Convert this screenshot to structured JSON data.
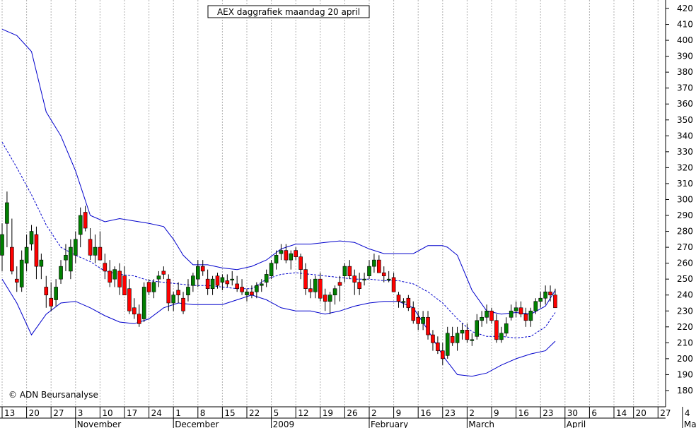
{
  "chart_data": {
    "type": "candlestick",
    "title": "AEX daggrafiek maandag 20 april",
    "credit": "© ADN Beursanalyse",
    "ylim": [
      165,
      425
    ],
    "y_ticks": [
      180,
      190,
      200,
      210,
      220,
      230,
      240,
      250,
      260,
      270,
      280,
      290,
      300,
      310,
      320,
      330,
      340,
      350,
      360,
      370,
      380,
      390,
      400,
      410,
      420
    ],
    "x_ticks": [
      {
        "label": "13",
        "day": 0
      },
      {
        "label": "20",
        "day": 5
      },
      {
        "label": "27",
        "day": 10
      },
      {
        "label": "3",
        "day": 15
      },
      {
        "label": "10",
        "day": 20
      },
      {
        "label": "17",
        "day": 25
      },
      {
        "label": "24",
        "day": 30
      },
      {
        "label": "1",
        "day": 35
      },
      {
        "label": "8",
        "day": 40
      },
      {
        "label": "15",
        "day": 45
      },
      {
        "label": "22",
        "day": 50
      },
      {
        "label": "5",
        "day": 55
      },
      {
        "label": "12",
        "day": 60
      },
      {
        "label": "19",
        "day": 65
      },
      {
        "label": "26",
        "day": 70
      },
      {
        "label": "2",
        "day": 75
      },
      {
        "label": "9",
        "day": 80
      },
      {
        "label": "16",
        "day": 85
      },
      {
        "label": "23",
        "day": 90
      },
      {
        "label": "2",
        "day": 95
      },
      {
        "label": "9",
        "day": 100
      },
      {
        "label": "16",
        "day": 105
      },
      {
        "label": "23",
        "day": 110
      },
      {
        "label": "30",
        "day": 115
      },
      {
        "label": "6",
        "day": 120
      },
      {
        "label": "14",
        "day": 125
      },
      {
        "label": "20",
        "day": 129
      },
      {
        "label": "27",
        "day": 134
      },
      {
        "label": "4",
        "day": 139
      }
    ],
    "months": [
      {
        "label": "November",
        "day": 15
      },
      {
        "label": "December",
        "day": 35
      },
      {
        "label": "2009",
        "day": 55
      },
      {
        "label": "February",
        "day": 75
      },
      {
        "label": "March",
        "day": 95
      },
      {
        "label": "April",
        "day": 115
      },
      {
        "label": "Ma",
        "day": 139
      }
    ],
    "candles": [
      [
        0,
        265,
        285,
        255,
        278
      ],
      [
        1,
        285,
        305,
        270,
        298
      ],
      [
        2,
        270,
        288,
        253,
        255
      ],
      [
        3,
        250,
        258,
        242,
        248
      ],
      [
        4,
        245,
        268,
        242,
        262
      ],
      [
        5,
        260,
        278,
        255,
        270
      ],
      [
        6,
        272,
        284,
        268,
        280
      ],
      [
        7,
        278,
        283,
        250,
        258
      ],
      [
        8,
        258,
        266,
        250,
        262
      ],
      [
        9,
        245,
        252,
        232,
        240
      ],
      [
        10,
        238,
        248,
        230,
        233
      ],
      [
        11,
        237,
        250,
        233,
        245
      ],
      [
        12,
        250,
        262,
        247,
        258
      ],
      [
        13,
        262,
        272,
        255,
        265
      ],
      [
        14,
        255,
        275,
        250,
        270
      ],
      [
        15,
        265,
        280,
        260,
        275
      ],
      [
        16,
        278,
        295,
        270,
        290
      ],
      [
        17,
        292,
        296,
        280,
        282
      ],
      [
        18,
        275,
        282,
        262,
        265
      ],
      [
        19,
        265,
        278,
        260,
        270
      ],
      [
        20,
        270,
        280,
        262,
        262
      ],
      [
        21,
        260,
        266,
        250,
        255
      ],
      [
        22,
        255,
        262,
        245,
        248
      ],
      [
        23,
        250,
        258,
        245,
        256
      ],
      [
        24,
        255,
        260,
        240,
        245
      ],
      [
        25,
        252,
        258,
        240,
        240
      ],
      [
        26,
        244,
        250,
        228,
        230
      ],
      [
        27,
        232,
        238,
        225,
        228
      ],
      [
        28,
        228,
        234,
        220,
        222
      ],
      [
        29,
        225,
        248,
        223,
        245
      ],
      [
        30,
        248,
        250,
        240,
        242
      ],
      [
        31,
        242,
        250,
        238,
        248
      ],
      [
        32,
        250,
        255,
        245,
        252
      ],
      [
        33,
        255,
        258,
        250,
        253
      ],
      [
        34,
        250,
        253,
        230,
        235
      ],
      [
        35,
        235,
        242,
        230,
        240
      ],
      [
        36,
        243,
        248,
        235,
        240
      ],
      [
        37,
        238,
        242,
        228,
        230
      ],
      [
        38,
        240,
        250,
        236,
        245
      ],
      [
        39,
        246,
        254,
        242,
        252
      ],
      [
        40,
        250,
        262,
        245,
        258
      ],
      [
        41,
        258,
        262,
        252,
        255
      ],
      [
        42,
        250,
        256,
        240,
        244
      ],
      [
        43,
        244,
        252,
        240,
        250
      ],
      [
        44,
        252,
        254,
        244,
        246
      ],
      [
        45,
        248,
        253,
        243,
        251
      ],
      [
        46,
        249,
        253,
        245,
        247
      ],
      [
        47,
        250,
        255,
        246,
        250
      ],
      [
        48,
        247,
        252,
        242,
        244
      ],
      [
        49,
        245,
        250,
        240,
        242
      ],
      [
        50,
        240,
        244,
        236,
        242
      ],
      [
        51,
        242,
        246,
        238,
        240
      ],
      [
        52,
        242,
        248,
        238,
        246
      ],
      [
        53,
        246,
        250,
        242,
        247
      ],
      [
        54,
        248,
        256,
        245,
        253
      ],
      [
        55,
        252,
        262,
        250,
        260
      ],
      [
        56,
        260,
        268,
        256,
        265
      ],
      [
        57,
        266,
        272,
        262,
        268
      ],
      [
        58,
        268,
        272,
        260,
        262
      ],
      [
        59,
        262,
        268,
        256,
        266
      ],
      [
        60,
        268,
        270,
        262,
        264
      ],
      [
        61,
        264,
        266,
        250,
        256
      ],
      [
        62,
        256,
        260,
        240,
        244
      ],
      [
        63,
        244,
        250,
        238,
        242
      ],
      [
        64,
        242,
        252,
        238,
        250
      ],
      [
        65,
        250,
        254,
        236,
        238
      ],
      [
        66,
        240,
        244,
        230,
        236
      ],
      [
        67,
        236,
        242,
        228,
        240
      ],
      [
        68,
        240,
        246,
        234,
        244
      ],
      [
        69,
        248,
        252,
        236,
        246
      ],
      [
        70,
        252,
        260,
        248,
        258
      ],
      [
        71,
        258,
        262,
        250,
        252
      ],
      [
        72,
        252,
        256,
        240,
        248
      ],
      [
        73,
        248,
        254,
        240,
        244
      ],
      [
        74,
        250,
        254,
        246,
        250
      ],
      [
        75,
        252,
        262,
        250,
        258
      ],
      [
        76,
        258,
        266,
        254,
        262
      ],
      [
        77,
        262,
        265,
        254,
        254
      ],
      [
        78,
        254,
        258,
        248,
        252
      ],
      [
        79,
        250,
        255,
        248,
        250
      ],
      [
        80,
        251,
        254,
        242,
        242
      ],
      [
        81,
        240,
        242,
        232,
        236
      ],
      [
        82,
        236,
        238,
        232,
        236
      ],
      [
        83,
        238,
        240,
        230,
        232
      ],
      [
        84,
        232,
        236,
        222,
        224
      ],
      [
        85,
        226,
        230,
        218,
        222
      ],
      [
        86,
        222,
        230,
        218,
        226
      ],
      [
        87,
        226,
        230,
        212,
        215
      ],
      [
        88,
        215,
        218,
        205,
        210
      ],
      [
        89,
        210,
        214,
        203,
        205
      ],
      [
        90,
        205,
        210,
        196,
        200
      ],
      [
        91,
        202,
        220,
        200,
        216
      ],
      [
        92,
        214,
        220,
        208,
        210
      ],
      [
        93,
        210,
        220,
        205,
        216
      ],
      [
        94,
        216,
        222,
        212,
        218
      ],
      [
        95,
        218,
        222,
        210,
        212
      ],
      [
        96,
        212,
        216,
        208,
        212
      ],
      [
        97,
        214,
        228,
        212,
        224
      ],
      [
        98,
        224,
        230,
        220,
        226
      ],
      [
        99,
        226,
        234,
        222,
        230
      ],
      [
        100,
        230,
        232,
        222,
        224
      ],
      [
        101,
        224,
        228,
        210,
        212
      ],
      [
        102,
        212,
        220,
        210,
        216
      ],
      [
        103,
        216,
        226,
        214,
        222
      ],
      [
        104,
        226,
        234,
        224,
        230
      ],
      [
        105,
        230,
        236,
        226,
        232
      ],
      [
        106,
        232,
        236,
        226,
        228
      ],
      [
        107,
        228,
        232,
        220,
        224
      ],
      [
        108,
        224,
        232,
        220,
        230
      ],
      [
        109,
        230,
        238,
        228,
        236
      ],
      [
        110,
        236,
        242,
        232,
        238
      ],
      [
        111,
        238,
        246,
        234,
        242
      ],
      [
        112,
        242,
        246,
        236,
        240
      ],
      [
        113,
        240,
        244,
        232,
        232
      ]
    ],
    "bollinger": {
      "upper": [
        [
          0,
          407
        ],
        [
          3,
          403
        ],
        [
          6,
          393
        ],
        [
          9,
          355
        ],
        [
          12,
          340
        ],
        [
          15,
          318
        ],
        [
          18,
          290
        ],
        [
          21,
          286
        ],
        [
          24,
          288
        ],
        [
          26,
          287
        ],
        [
          30,
          285
        ],
        [
          33,
          283
        ],
        [
          35,
          275
        ],
        [
          37,
          265
        ],
        [
          39,
          259
        ],
        [
          42,
          259
        ],
        [
          45,
          257
        ],
        [
          48,
          256
        ],
        [
          51,
          258
        ],
        [
          54,
          262
        ],
        [
          57,
          269
        ],
        [
          60,
          272
        ],
        [
          63,
          272
        ],
        [
          66,
          273
        ],
        [
          69,
          274
        ],
        [
          72,
          273
        ],
        [
          75,
          269
        ],
        [
          78,
          266
        ],
        [
          81,
          266
        ],
        [
          84,
          266
        ],
        [
          87,
          271
        ],
        [
          90,
          271
        ],
        [
          91,
          270
        ],
        [
          93,
          265
        ],
        [
          96,
          243
        ],
        [
          99,
          230
        ],
        [
          102,
          228
        ],
        [
          105,
          229
        ],
        [
          108,
          228
        ],
        [
          111,
          233
        ],
        [
          113,
          243
        ]
      ],
      "middle": [
        [
          0,
          336
        ],
        [
          3,
          320
        ],
        [
          6,
          303
        ],
        [
          9,
          284
        ],
        [
          12,
          270
        ],
        [
          15,
          265
        ],
        [
          18,
          261
        ],
        [
          21,
          255
        ],
        [
          24,
          253
        ],
        [
          27,
          252
        ],
        [
          30,
          249
        ],
        [
          33,
          248
        ],
        [
          36,
          247
        ],
        [
          39,
          246
        ],
        [
          42,
          246
        ],
        [
          45,
          245
        ],
        [
          48,
          244
        ],
        [
          51,
          244
        ],
        [
          54,
          250
        ],
        [
          57,
          253
        ],
        [
          60,
          254
        ],
        [
          63,
          253
        ],
        [
          66,
          252
        ],
        [
          69,
          251
        ],
        [
          72,
          250
        ],
        [
          75,
          250
        ],
        [
          78,
          249
        ],
        [
          81,
          249
        ],
        [
          84,
          247
        ],
        [
          87,
          242
        ],
        [
          90,
          235
        ],
        [
          93,
          225
        ],
        [
          96,
          217
        ],
        [
          99,
          214
        ],
        [
          102,
          214
        ],
        [
          105,
          213
        ],
        [
          108,
          214
        ],
        [
          111,
          220
        ],
        [
          113,
          229
        ]
      ],
      "lower": [
        [
          0,
          250
        ],
        [
          3,
          235
        ],
        [
          6,
          215
        ],
        [
          9,
          228
        ],
        [
          12,
          235
        ],
        [
          15,
          236
        ],
        [
          18,
          232
        ],
        [
          21,
          227
        ],
        [
          24,
          223
        ],
        [
          27,
          222
        ],
        [
          30,
          225
        ],
        [
          33,
          232
        ],
        [
          36,
          235
        ],
        [
          39,
          234
        ],
        [
          42,
          234
        ],
        [
          45,
          234
        ],
        [
          48,
          237
        ],
        [
          51,
          240
        ],
        [
          54,
          237
        ],
        [
          57,
          232
        ],
        [
          60,
          230
        ],
        [
          63,
          230
        ],
        [
          66,
          228
        ],
        [
          69,
          230
        ],
        [
          72,
          233
        ],
        [
          75,
          235
        ],
        [
          78,
          236
        ],
        [
          81,
          236
        ],
        [
          84,
          232
        ],
        [
          87,
          218
        ],
        [
          90,
          202
        ],
        [
          93,
          190
        ],
        [
          96,
          189
        ],
        [
          99,
          191
        ],
        [
          102,
          196
        ],
        [
          105,
          200
        ],
        [
          108,
          203
        ],
        [
          111,
          205
        ],
        [
          113,
          211
        ]
      ]
    }
  }
}
